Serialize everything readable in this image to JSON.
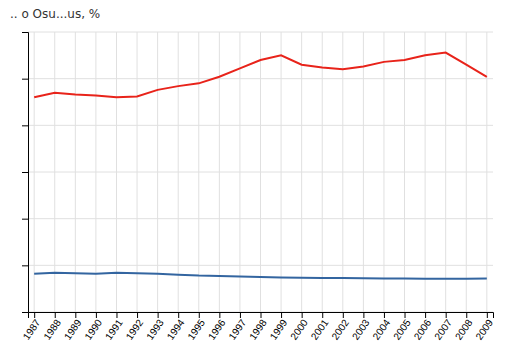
{
  "chart_data": {
    "type": "line",
    "title": ".. o Osu...us, %",
    "x": [
      1987,
      1988,
      1989,
      1990,
      1991,
      1992,
      1993,
      1994,
      1995,
      1996,
      1997,
      1998,
      1999,
      2000,
      2001,
      2002,
      2003,
      2004,
      2005,
      2006,
      2007,
      2008,
      2009
    ],
    "series": [
      {
        "color": "#e8231a",
        "values": [
          23.0,
          23.5,
          23.3,
          23.2,
          23.0,
          23.1,
          23.8,
          24.2,
          24.5,
          25.2,
          26.1,
          27.0,
          27.5,
          26.5,
          26.2,
          26.0,
          26.3,
          26.8,
          27.0,
          27.5,
          27.8,
          26.5,
          25.2
        ]
      },
      {
        "color": "#3365a0",
        "values": [
          4.1,
          4.2,
          4.15,
          4.1,
          4.2,
          4.15,
          4.1,
          4.0,
          3.9,
          3.85,
          3.8,
          3.75,
          3.7,
          3.68,
          3.65,
          3.65,
          3.62,
          3.6,
          3.58,
          3.57,
          3.55,
          3.55,
          3.58
        ]
      }
    ],
    "xlim": [
      1986.7,
      2009.3
    ],
    "xticks": [
      1987,
      1988,
      1989,
      1990,
      1991,
      1992,
      1993,
      1994,
      1995,
      1996,
      1997,
      1998,
      1999,
      2000,
      2001,
      2002,
      2003,
      2004,
      2005,
      2006,
      2007,
      2008,
      2009
    ],
    "ylim": [
      0,
      30
    ],
    "yticks": [
      0,
      5,
      10,
      15,
      20,
      25,
      30
    ],
    "grid": true,
    "tick_labels": "x"
  }
}
